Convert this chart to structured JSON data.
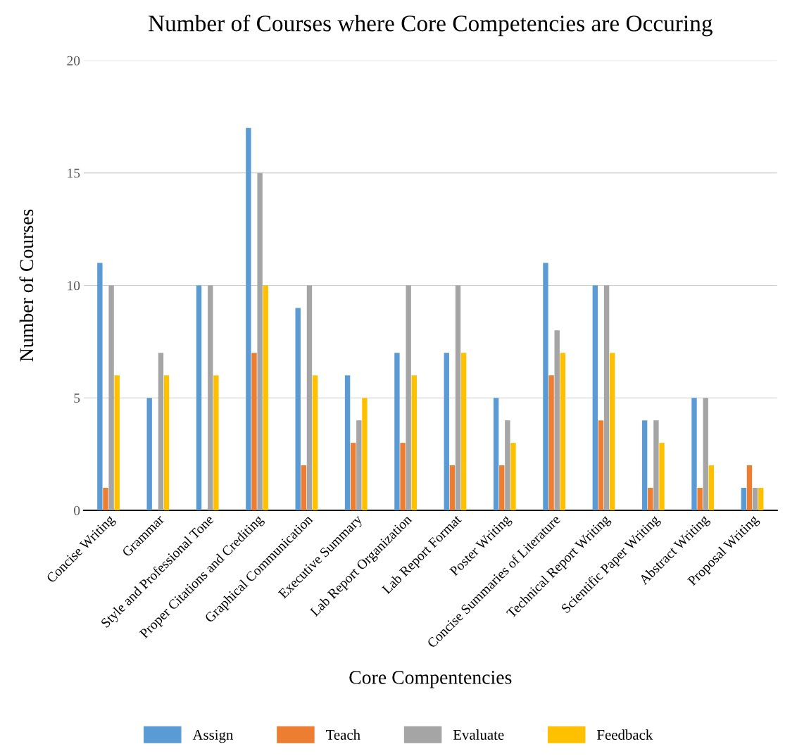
{
  "chart_data": {
    "type": "bar",
    "title": "Number of Courses where Core Competencies are Occuring",
    "xlabel": "Core Compentencies",
    "ylabel": "Number of Courses",
    "categories": [
      "Concise Writing",
      "Grammar",
      "Style and Professional Tone",
      "Proper Citations and Crediting",
      "Graphical Communication",
      "Executive Summary",
      "Lab Report Organization",
      "Lab Report Format",
      "Poster Writing",
      "Concise Summaries of Literature",
      "Technical Report Writing",
      "Scientific Paper Writing",
      "Abstract Writing",
      "Proposal Writing"
    ],
    "series": [
      {
        "name": "Assign",
        "color": "#5b9bd5",
        "values": [
          11,
          5,
          10,
          17,
          9,
          6,
          7,
          7,
          5,
          11,
          10,
          4,
          5,
          1
        ]
      },
      {
        "name": "Teach",
        "color": "#ed7d31",
        "values": [
          1,
          0,
          0,
          7,
          2,
          3,
          3,
          2,
          2,
          6,
          4,
          1,
          1,
          2
        ]
      },
      {
        "name": "Evaluate",
        "color": "#a5a5a5",
        "values": [
          10,
          7,
          10,
          15,
          10,
          4,
          10,
          10,
          4,
          8,
          10,
          4,
          5,
          1
        ]
      },
      {
        "name": "Feedback",
        "color": "#ffc000",
        "values": [
          6,
          6,
          6,
          10,
          6,
          5,
          6,
          7,
          3,
          7,
          7,
          3,
          2,
          1
        ]
      }
    ],
    "ylim": [
      0,
      20
    ],
    "yticks": [
      0,
      5,
      10,
      15,
      20
    ],
    "grid": "y",
    "legend": "bottom"
  }
}
